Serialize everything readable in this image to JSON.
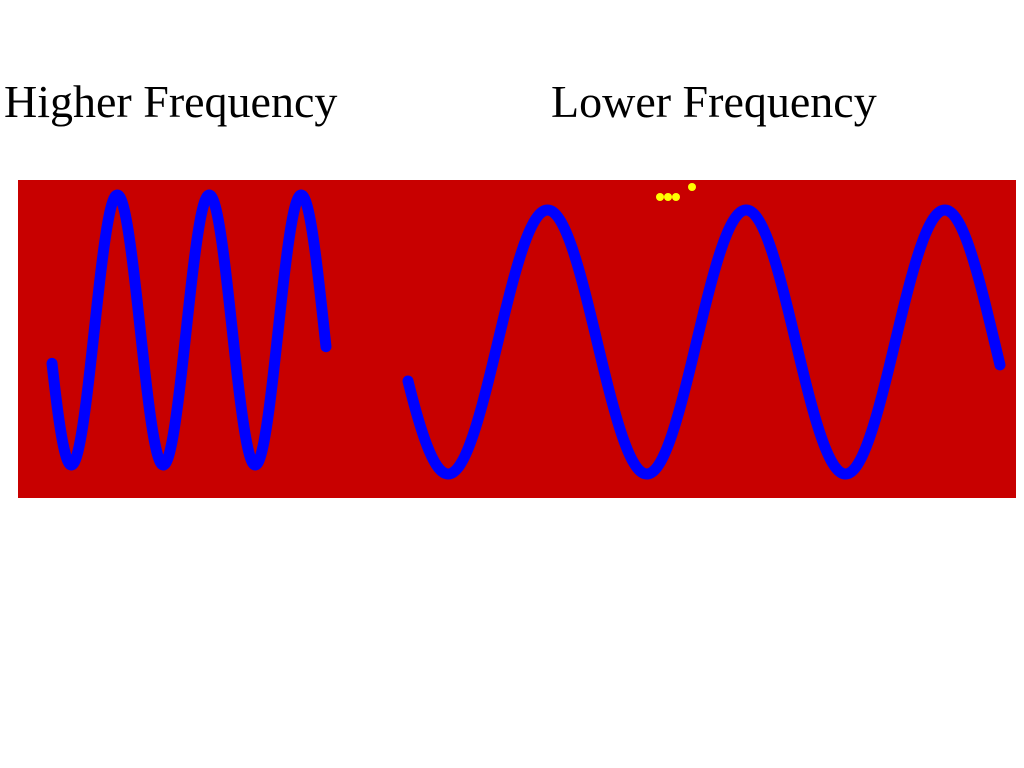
{
  "labels": {
    "left": "Higher Frequency",
    "right": "Lower Frequency"
  },
  "colors": {
    "background": "#ffffff",
    "panel": "#c80000",
    "wave": "#0000ff",
    "dots": "#ffff00",
    "text": "#000000"
  },
  "waves": {
    "higher": {
      "cycles": 3
    },
    "lower": {
      "cycles": 3
    }
  }
}
